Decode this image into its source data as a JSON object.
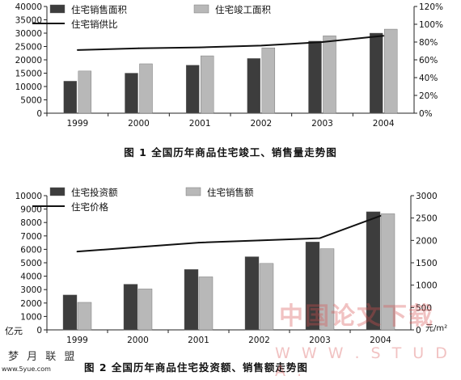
{
  "chart_data": [
    {
      "type": "bar",
      "title": "",
      "categories": [
        "1999",
        "2000",
        "2001",
        "2002",
        "2003",
        "2004"
      ],
      "y_ticks": [
        "0",
        "5000",
        "10000",
        "15000",
        "20000",
        "25000",
        "30000",
        "35000",
        "40000"
      ],
      "y2_ticks": [
        "0%",
        "20%",
        "40%",
        "60%",
        "80%",
        "100%",
        "120%"
      ],
      "ylim": [
        0,
        40000
      ],
      "y2lim": [
        0,
        1.2
      ],
      "series": [
        {
          "name": "住宅销售面积",
          "kind": "bar",
          "color": "#3d3d3d",
          "values": [
            12000,
            15000,
            18000,
            20500,
            27000,
            30000
          ]
        },
        {
          "name": "住宅竣工面积",
          "kind": "bar",
          "color": "#b8b8b8",
          "values": [
            15800,
            18500,
            21500,
            24500,
            29000,
            31500
          ]
        },
        {
          "name": "住宅销供比",
          "kind": "line",
          "axis": "right",
          "color": "#111111",
          "values": [
            0.71,
            0.73,
            0.74,
            0.76,
            0.8,
            0.87
          ]
        }
      ],
      "legend_position": "top"
    },
    {
      "type": "bar",
      "title": "",
      "categories": [
        "1999",
        "2000",
        "2001",
        "2002",
        "2003",
        "2004"
      ],
      "y_ticks": [
        "0",
        "1000",
        "2000",
        "3000",
        "4000",
        "5000",
        "6000",
        "7000",
        "8000",
        "9000",
        "10000"
      ],
      "y2_ticks": [
        "0",
        "500",
        "1000",
        "1500",
        "2000",
        "2500",
        "3000"
      ],
      "ylim": [
        0,
        10000
      ],
      "y2lim": [
        0,
        3000
      ],
      "ylabel": "亿元",
      "y2label": "元/m²",
      "series": [
        {
          "name": "住宅投资额",
          "kind": "bar",
          "color": "#3d3d3d",
          "values": [
            2600,
            3400,
            4500,
            5450,
            6550,
            8800
          ]
        },
        {
          "name": "住宅销售额",
          "kind": "bar",
          "color": "#b8b8b8",
          "values": [
            2050,
            3050,
            3950,
            4950,
            6050,
            8650
          ]
        },
        {
          "name": "住宅价格",
          "kind": "line",
          "axis": "right",
          "color": "#111111",
          "values": [
            1750,
            1850,
            1950,
            2000,
            2050,
            2550
          ]
        }
      ],
      "legend_position": "top"
    }
  ],
  "captions": {
    "fig1": "图 1   全国历年商品住宅竣工、销售量走势图",
    "fig2": "图 2   全国历年商品住宅投资额、销售额走势图"
  },
  "watermarks": {
    "logo": "梦 月 联 盟",
    "site": "www.5yue.com",
    "cn": "中国论文下载",
    "url": "W W W . S T U D A ."
  }
}
